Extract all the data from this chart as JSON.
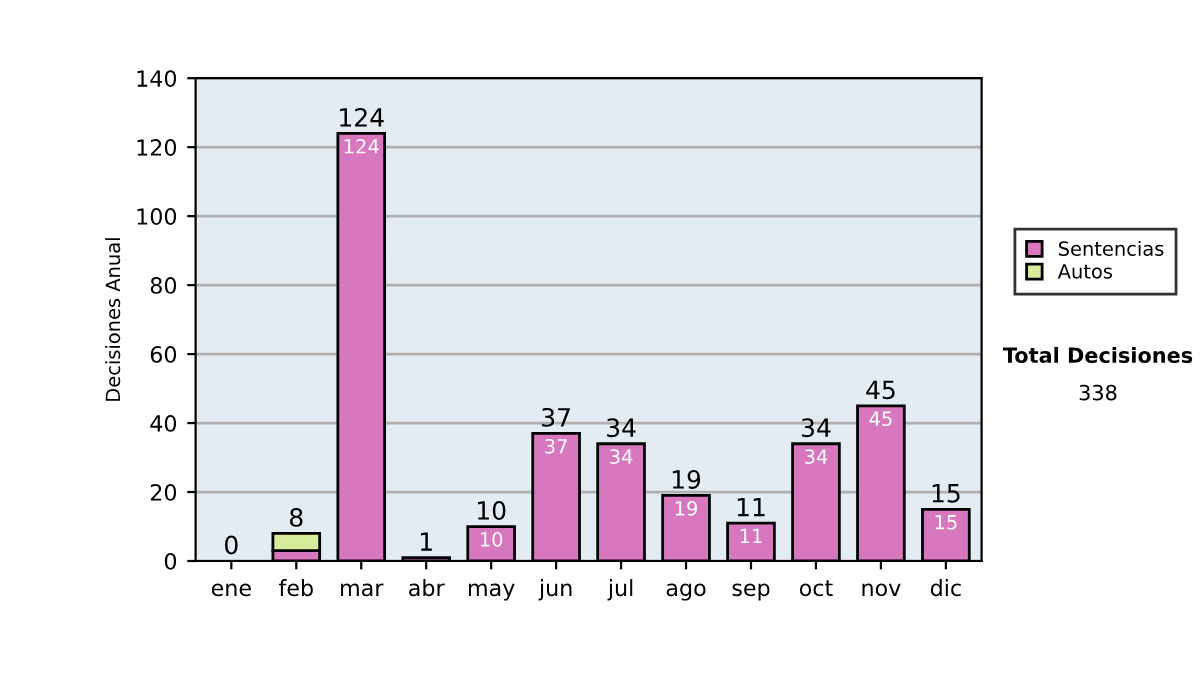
{
  "chart_data": {
    "type": "bar",
    "stacked": true,
    "ylabel": "Decisiones Anual",
    "categories": [
      "ene",
      "feb",
      "mar",
      "abr",
      "may",
      "jun",
      "jul",
      "ago",
      "sep",
      "oct",
      "nov",
      "dic"
    ],
    "series": [
      {
        "name": "Sentencias",
        "color": "#d778bf",
        "values": [
          0,
          3,
          124,
          1,
          10,
          37,
          34,
          19,
          11,
          34,
          45,
          15
        ],
        "value_labels": [
          null,
          null,
          "124",
          null,
          "10",
          "37",
          "34",
          "19",
          "11",
          "34",
          "45",
          "15"
        ]
      },
      {
        "name": "Autos",
        "color": "#d6eb9c",
        "values": [
          0,
          5,
          0,
          0,
          0,
          0,
          0,
          0,
          0,
          0,
          0,
          0
        ]
      }
    ],
    "totals": [
      "0",
      "8",
      "124",
      "1",
      "10",
      "37",
      "34",
      "19",
      "11",
      "34",
      "45",
      "15"
    ],
    "ylim": [
      0,
      140
    ],
    "yticks": [
      0,
      20,
      40,
      60,
      80,
      100,
      120,
      140
    ],
    "grid": "y",
    "legend": "right",
    "annotations": [
      "Total Decisiones",
      "338"
    ]
  }
}
